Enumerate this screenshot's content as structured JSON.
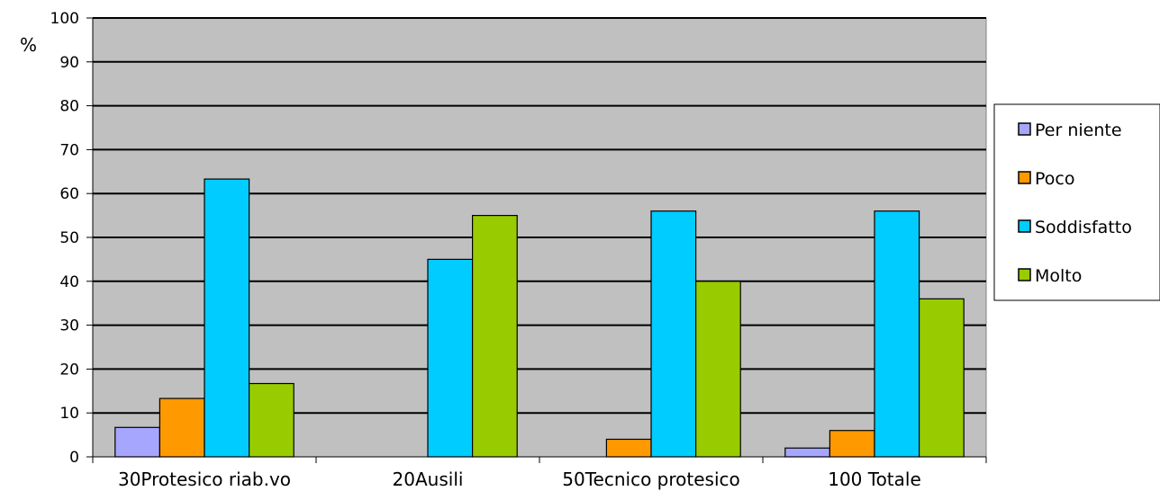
{
  "chart_data": {
    "type": "bar",
    "ylabel": "%",
    "ylim": [
      0,
      100
    ],
    "yticks": [
      "0",
      "10",
      "20",
      "30",
      "40",
      "50",
      "60",
      "70",
      "80",
      "90",
      "100"
    ],
    "categories": [
      "30Protesico riab.vo",
      "20Ausili",
      "50Tecnico protesico",
      "100 Totale"
    ],
    "series": [
      {
        "name": "Per niente",
        "color": "#a6a6ff",
        "values": [
          6.7,
          0,
          0,
          2
        ]
      },
      {
        "name": "Poco",
        "color": "#ff9900",
        "values": [
          13.3,
          0,
          4,
          6
        ]
      },
      {
        "name": "Soddisfatto",
        "color": "#00ccff",
        "values": [
          63.3,
          45,
          56,
          56
        ]
      },
      {
        "name": "Molto",
        "color": "#99cc00",
        "values": [
          16.7,
          55,
          40,
          36
        ]
      }
    ],
    "grid": true,
    "legend_position": "right",
    "plot_background": "#c0c0c0"
  }
}
